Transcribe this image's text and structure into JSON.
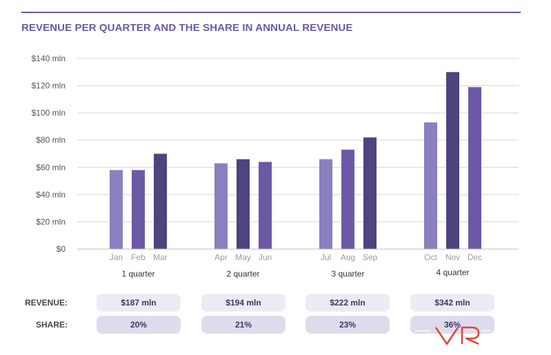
{
  "title": "REVENUE PER QUARTER AND THE SHARE IN ANNUAL REVENUE",
  "colors": {
    "accent": "#6b58a8",
    "bar_light": "#8b7fbf",
    "bar_mid": "#6d58a6",
    "bar_dark": "#4d4480",
    "grid": "#d4d4d4",
    "tick_text": "#555555",
    "month_text": "#9a9a9a"
  },
  "chart_data": {
    "type": "bar",
    "title": "REVENUE PER QUARTER AND THE SHARE IN ANNUAL REVENUE",
    "ylim": [
      0,
      140
    ],
    "yticks": [
      0,
      20,
      40,
      60,
      80,
      100,
      120,
      140
    ],
    "ytick_labels": [
      "$0",
      "$20 mln",
      "$40 mln",
      "$60 mln",
      "$80 mln",
      "$100 mln",
      "$120 mln",
      "$140 mln"
    ],
    "grid": true,
    "groups": [
      {
        "label": "1 quarter",
        "months": [
          "Jan",
          "Feb",
          "Mar"
        ],
        "values": [
          58,
          58,
          70
        ],
        "shades": [
          "light",
          "mid",
          "dark"
        ]
      },
      {
        "label": "2 quarter",
        "months": [
          "Apr",
          "May",
          "Jun"
        ],
        "values": [
          63,
          66,
          64
        ],
        "shades": [
          "light",
          "dark",
          "mid"
        ]
      },
      {
        "label": "3 quarter",
        "months": [
          "Jul",
          "Aug",
          "Sep"
        ],
        "values": [
          66,
          73,
          82
        ],
        "shades": [
          "light",
          "mid",
          "dark"
        ]
      },
      {
        "label": "4 quarter",
        "months": [
          "Oct",
          "Nov",
          "Dec"
        ],
        "values": [
          93,
          130,
          119
        ],
        "shades": [
          "light",
          "dark",
          "mid"
        ]
      }
    ]
  },
  "table": {
    "revenue_label": "REVENUE:",
    "share_label": "SHARE:",
    "revenue": [
      "$187 mln",
      "$194 mln",
      "$222 mln",
      "$342 mln"
    ],
    "share": [
      "20%",
      "21%",
      "23%",
      "36%"
    ]
  },
  "watermark": {
    "name": "vr-logo-icon",
    "text": "VR"
  }
}
